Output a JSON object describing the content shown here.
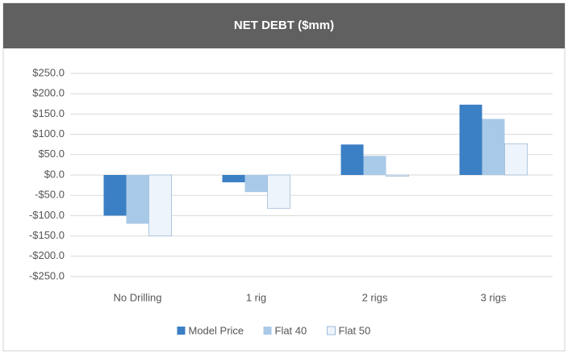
{
  "chart_data": {
    "type": "bar",
    "title": "NET DEBT ($mm)",
    "categories": [
      "No Drilling",
      "1 rig",
      "2 rigs",
      "3 rigs"
    ],
    "series": [
      {
        "name": "Model Price",
        "color": "#3b7fc4",
        "values": [
          -100,
          -18,
          75,
          173
        ]
      },
      {
        "name": "Flat 40",
        "color": "#a9c9e8",
        "values": [
          -120,
          -42,
          47,
          138
        ]
      },
      {
        "name": "Flat 50",
        "color": "#eef4fb",
        "values": [
          -150,
          -82,
          -3,
          77
        ]
      }
    ],
    "ylim": [
      -250,
      250
    ],
    "yticks": [
      {
        "value": -250,
        "label": "-$250.0"
      },
      {
        "value": -200,
        "label": "-$200.0"
      },
      {
        "value": -150,
        "label": "-$150.0"
      },
      {
        "value": -100,
        "label": "-$100.0"
      },
      {
        "value": -50,
        "label": "-$50.0"
      },
      {
        "value": 0,
        "label": "$0.0"
      },
      {
        "value": 50,
        "label": "$50.0"
      },
      {
        "value": 100,
        "label": "$100.0"
      },
      {
        "value": 150,
        "label": "$150.0"
      },
      {
        "value": 200,
        "label": "$200.0"
      },
      {
        "value": 250,
        "label": "$250.0"
      }
    ],
    "grid": true,
    "legend": "bottom"
  }
}
